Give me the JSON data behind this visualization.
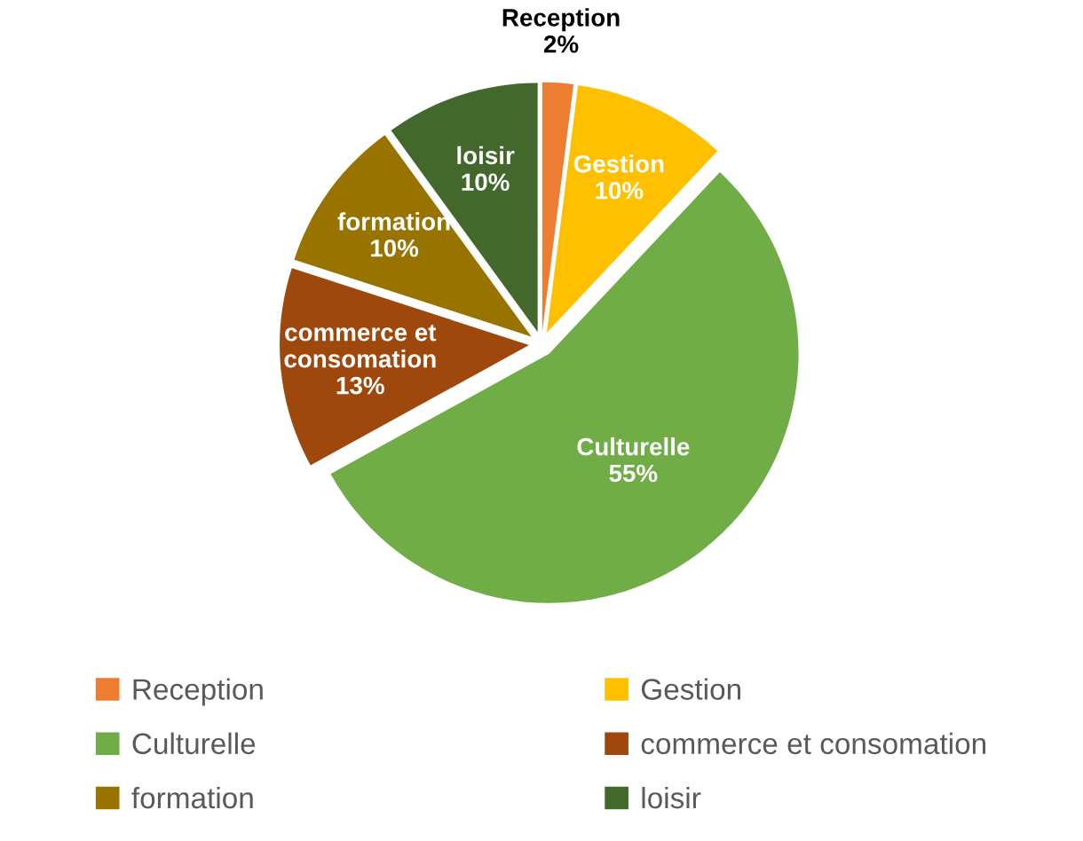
{
  "chart_data": {
    "type": "pie",
    "categories": [
      "Reception",
      "Gestion",
      "Culturelle",
      "commerce et consomation",
      "formation",
      "loisir"
    ],
    "values": [
      2,
      10,
      55,
      13,
      10,
      10
    ],
    "value_labels": [
      "2%",
      "10%",
      "55%",
      "13%",
      "10%",
      "10%"
    ],
    "colors": [
      "#ed7d31",
      "#ffc000",
      "#70ad47",
      "#9e480e",
      "#997300",
      "#43682b"
    ],
    "legend": "bottom"
  }
}
